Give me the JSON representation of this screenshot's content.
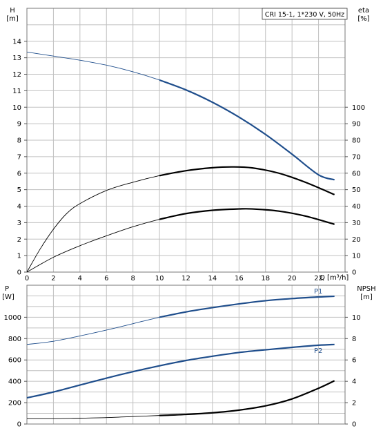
{
  "chart_data": [
    {
      "type": "line",
      "title": "CRI 15-1, 1*230 V, 50Hz",
      "xlabel": "Q [m³/h]",
      "ylabel": "H [m]",
      "ylabel_name": "H",
      "ylabel_unit": "[m]",
      "y2label": "eta [%]",
      "y2label_name": "eta",
      "y2label_unit": "[%]",
      "xlim": [
        0,
        24
      ],
      "ylim": [
        0,
        16
      ],
      "y2lim": [
        0,
        160
      ],
      "grid": true,
      "x_ticks": [
        0,
        2,
        4,
        6,
        8,
        10,
        12,
        14,
        16,
        18,
        20,
        22
      ],
      "y_ticks": [
        0,
        1,
        2,
        3,
        4,
        5,
        6,
        7,
        8,
        9,
        10,
        11,
        12,
        13,
        14
      ],
      "y2_ticks": [
        0,
        10,
        20,
        30,
        40,
        50,
        60,
        70,
        80,
        90,
        100
      ],
      "series": [
        {
          "key": "head",
          "axis": "left",
          "color": "#1f4e8c",
          "thin_until": 8.5,
          "x": [
            0,
            2,
            4,
            6,
            8,
            10,
            12,
            14,
            16,
            18,
            20,
            22,
            23.2
          ],
          "values": [
            13.35,
            13.1,
            12.85,
            12.55,
            12.15,
            11.65,
            11.05,
            10.3,
            9.4,
            8.35,
            7.15,
            5.9,
            5.6
          ]
        },
        {
          "key": "eta",
          "axis": "right",
          "color": "#000000",
          "thin_until": 8.5,
          "x": [
            0,
            1,
            2,
            3,
            4,
            6,
            8,
            10,
            12,
            14,
            15.5,
            17,
            19,
            21,
            23.2
          ],
          "values": [
            0,
            14,
            26,
            35.5,
            41.5,
            49.5,
            54.5,
            58.5,
            61.5,
            63.3,
            63.8,
            63.2,
            60,
            54.5,
            47
          ]
        },
        {
          "key": "eta2",
          "axis": "right",
          "color": "#000000",
          "thin_until": 8.5,
          "x": [
            0,
            2,
            4,
            6,
            8,
            10,
            12,
            14,
            16,
            17,
            19,
            21,
            23.2
          ],
          "values": [
            0,
            9,
            16,
            22,
            27.5,
            32,
            35.5,
            37.5,
            38.3,
            38.3,
            37,
            34,
            29
          ]
        }
      ]
    },
    {
      "type": "line",
      "xlim": [
        0,
        24
      ],
      "ylim": [
        0,
        1300
      ],
      "y2lim": [
        0,
        13
      ],
      "grid": true,
      "ylabel": "P [W]",
      "ylabel_name": "P",
      "ylabel_unit": "[W]",
      "y2label": "NPSH [m]",
      "y2label_name": "NPSH",
      "y2label_unit": "[m]",
      "x_ticks": [
        0,
        2,
        4,
        6,
        8,
        10,
        12,
        14,
        16,
        18,
        20,
        22
      ],
      "y_ticks": [
        0,
        200,
        400,
        600,
        800,
        1000
      ],
      "y2_ticks": [
        0,
        2,
        4,
        6,
        8,
        10
      ],
      "series": [
        {
          "name": "P1",
          "axis": "left",
          "color": "#1f4e8c",
          "thin_until": 8.5,
          "x": [
            0,
            2,
            4,
            6,
            8,
            10,
            12,
            14,
            16,
            18,
            20,
            22,
            23.2
          ],
          "values": [
            745,
            775,
            825,
            880,
            940,
            1000,
            1050,
            1090,
            1125,
            1155,
            1175,
            1190,
            1197
          ]
        },
        {
          "name": "P2",
          "axis": "left",
          "color": "#1f4e8c",
          "thin_until": 0,
          "x": [
            0,
            2,
            4,
            6,
            8,
            10,
            12,
            14,
            16,
            18,
            20,
            22,
            23.2
          ],
          "values": [
            245,
            300,
            365,
            430,
            490,
            545,
            595,
            635,
            670,
            695,
            718,
            738,
            745
          ]
        },
        {
          "key": "npsh",
          "axis": "right",
          "color": "#000000",
          "thin_until": 8.5,
          "x": [
            0,
            2,
            4,
            6,
            8,
            10,
            12,
            14,
            16,
            18,
            20,
            22,
            23.2
          ],
          "values": [
            0.5,
            0.5,
            0.55,
            0.6,
            0.7,
            0.8,
            0.9,
            1.05,
            1.3,
            1.7,
            2.35,
            3.35,
            4.05
          ]
        }
      ]
    }
  ]
}
